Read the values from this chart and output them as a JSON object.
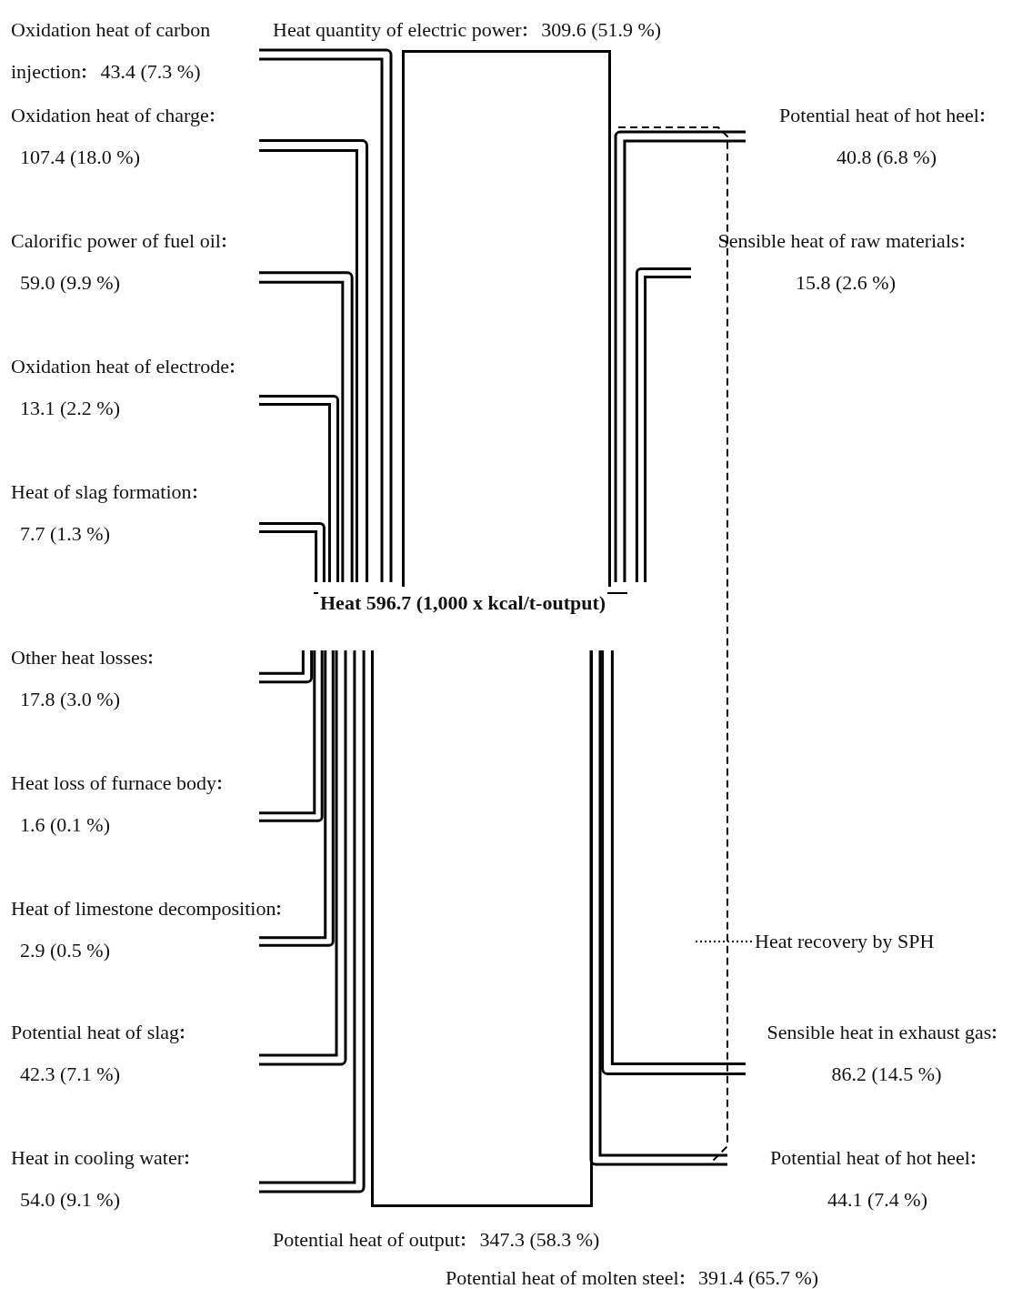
{
  "chart_data": {
    "type": "other",
    "title": "Heat 596.7 (1,000 x kcal/t-output)",
    "categories": [
      "Heat quantity of electric power",
      "Oxidation heat of carbon injection",
      "Oxidation heat of charge",
      "Calorific power of fuel oil",
      "Oxidation heat of electrode",
      "Heat of slag formation",
      "Potential heat of hot heel",
      "Sensible heat of raw materials",
      "Other heat losses",
      "Heat loss of furnace body",
      "Heat of limestone decomposition",
      "Potential heat of slag",
      "Heat in cooling water",
      "Sensible heat in exhaust gas",
      "Potential heat of hot heel",
      "Potential heat of output",
      "Potential heat of molten steel"
    ],
    "values": [
      309.6,
      43.4,
      107.4,
      59.0,
      13.1,
      7.7,
      40.8,
      15.8,
      17.8,
      1.6,
      2.9,
      42.3,
      54.0,
      86.2,
      44.1,
      347.3,
      391.4
    ],
    "value_labels": [
      "309.6 (51.9 %)",
      "43.4 (7.3 %)",
      "107.4 (18.0 %)",
      "59.0 (9.9 %)",
      "13.1 (2.2 %)",
      "7.7 (1.3 %)",
      "40.8 (6.8 %)",
      "15.8 (2.6 %)",
      "17.8 (3.0 %)",
      "1.6 (0.1 %)",
      "2.9 (0.5 %)",
      "42.3 (7.1 %)",
      "54.0 (9.1 %)",
      "86.2 (14.5 %)",
      "44.1 (7.4 %)",
      "347.3 (58.3 %)",
      "391.4 (65.7 %)"
    ],
    "annotations": [
      "Heat recovery by SPH"
    ]
  }
}
